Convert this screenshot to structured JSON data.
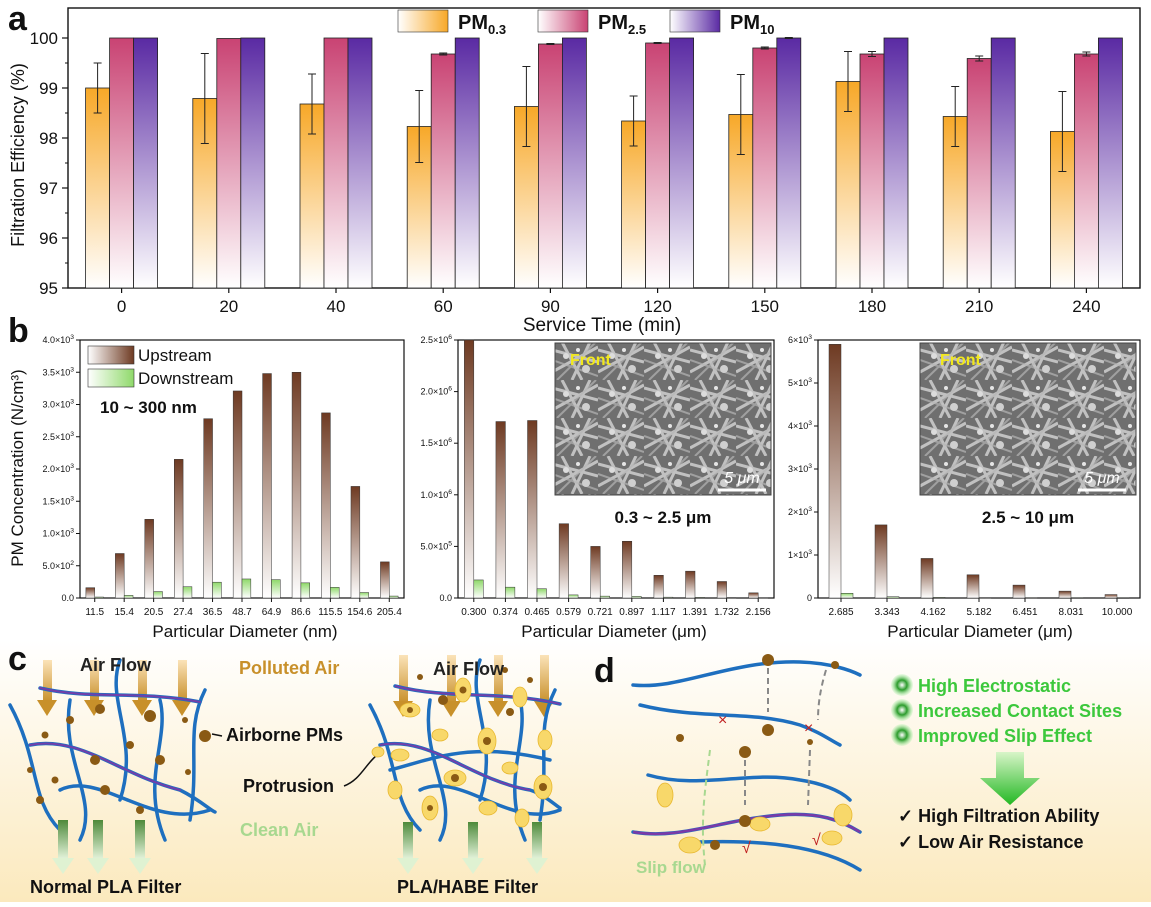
{
  "panel_labels": {
    "a": "a",
    "b": "b",
    "c": "c",
    "d": "d"
  },
  "chart_data": [
    {
      "type": "bar",
      "id": "a",
      "title": "",
      "xlabel": "Service Time (min)",
      "ylabel": "Filtration Efficiency (%)",
      "ylim": [
        95,
        100.6
      ],
      "yticks": [
        "95",
        "96",
        "97",
        "98",
        "99",
        "100"
      ],
      "categories": [
        "0",
        "20",
        "40",
        "60",
        "90",
        "120",
        "150",
        "180",
        "210",
        "240"
      ],
      "legend": [
        {
          "base": "PM",
          "sub": "0.3"
        },
        {
          "base": "PM",
          "sub": "2.5"
        },
        {
          "base": "PM",
          "sub": "10"
        }
      ],
      "colors": [
        "#f7a828",
        "#c94373",
        "#5a2aa3"
      ],
      "series": [
        {
          "name": "PM0.3",
          "values": [
            99.0,
            98.79,
            98.68,
            98.23,
            98.63,
            98.34,
            98.47,
            99.13,
            98.43,
            98.13
          ],
          "errors": [
            0.5,
            0.9,
            0.6,
            0.72,
            0.8,
            0.5,
            0.8,
            0.6,
            0.6,
            0.8
          ]
        },
        {
          "name": "PM2.5",
          "values": [
            100.0,
            99.99,
            100.0,
            99.68,
            99.88,
            99.9,
            99.8,
            99.68,
            99.59,
            99.68
          ],
          "errors": [
            0,
            0,
            0,
            0.02,
            0.01,
            0.01,
            0.02,
            0.05,
            0.05,
            0.04
          ]
        },
        {
          "name": "PM10",
          "values": [
            100.0,
            100.0,
            100.0,
            100.0,
            100.0,
            100.0,
            100.0,
            100.0,
            100.0,
            100.0
          ],
          "errors": [
            0,
            0,
            0,
            0,
            0,
            0,
            0.01,
            0,
            0,
            0
          ]
        }
      ]
    },
    {
      "type": "bar",
      "id": "b1",
      "xlabel": "Particular Diameter (nm)",
      "ylabel": "PM Concentration (N/cm³)",
      "ylim": [
        0,
        4000
      ],
      "yticks": [
        {
          "m": "0.0",
          "e": ""
        },
        {
          "m": "5.0×10",
          "e": "2"
        },
        {
          "m": "1.0×10",
          "e": "3"
        },
        {
          "m": "1.5×10",
          "e": "3"
        },
        {
          "m": "2.0×10",
          "e": "3"
        },
        {
          "m": "2.5×10",
          "e": "3"
        },
        {
          "m": "3.0×10",
          "e": "3"
        },
        {
          "m": "3.5×10",
          "e": "3"
        },
        {
          "m": "4.0×10",
          "e": "3"
        }
      ],
      "categories": [
        "11.5",
        "15.4",
        "20.5",
        "27.4",
        "36.5",
        "48.7",
        "64.9",
        "86.6",
        "115.5",
        "154.6",
        "205.4"
      ],
      "legend": [
        "Upstream",
        "Downstream"
      ],
      "range_label": "10 ~ 300 nm",
      "series": [
        {
          "name": "Upstream",
          "values": [
            160,
            690,
            1220,
            2150,
            2780,
            3210,
            3480,
            3500,
            2870,
            1730,
            560
          ]
        },
        {
          "name": "Downstream",
          "values": [
            15,
            40,
            100,
            175,
            245,
            295,
            285,
            235,
            165,
            85,
            30
          ]
        }
      ]
    },
    {
      "type": "bar",
      "id": "b2",
      "xlabel": "Particular Diameter (μm)",
      "ylabel": "",
      "ylim": [
        0,
        2500000
      ],
      "yticks": [
        {
          "m": "0.0",
          "e": ""
        },
        {
          "m": "5.0×10",
          "e": "5"
        },
        {
          "m": "1.0×10",
          "e": "6"
        },
        {
          "m": "1.5×10",
          "e": "6"
        },
        {
          "m": "2.0×10",
          "e": "6"
        },
        {
          "m": "2.5×10",
          "e": "6"
        }
      ],
      "categories": [
        "0.300",
        "0.374",
        "0.465",
        "0.579",
        "0.721",
        "0.897",
        "1.117",
        "1.391",
        "1.732",
        "2.156"
      ],
      "range_label": "0.3 ~ 2.5 μm",
      "inset": {
        "label": "Front",
        "scale": "5 μm"
      },
      "series": [
        {
          "name": "Upstream",
          "values": [
            2500000,
            1710000,
            1720000,
            720000,
            500000,
            550000,
            220000,
            260000,
            160000,
            50000
          ]
        },
        {
          "name": "Downstream",
          "values": [
            175000,
            105000,
            90000,
            30000,
            18000,
            15000,
            8000,
            6000,
            4000,
            3000
          ]
        }
      ]
    },
    {
      "type": "bar",
      "id": "b3",
      "xlabel": "Particular Diameter (μm)",
      "ylabel": "",
      "ylim": [
        0,
        6000
      ],
      "yticks": [
        {
          "m": "0",
          "e": ""
        },
        {
          "m": "1×10",
          "e": "3"
        },
        {
          "m": "2×10",
          "e": "3"
        },
        {
          "m": "3×10",
          "e": "3"
        },
        {
          "m": "4×10",
          "e": "3"
        },
        {
          "m": "5×10",
          "e": "3"
        },
        {
          "m": "6×10",
          "e": "3"
        }
      ],
      "categories": [
        "2.685",
        "3.343",
        "4.162",
        "5.182",
        "6.451",
        "8.031",
        "10.000"
      ],
      "range_label": "2.5 ~ 10 μm",
      "inset": {
        "label": "Front",
        "scale": "5 μm"
      },
      "series": [
        {
          "name": "Upstream",
          "values": [
            5900,
            1700,
            920,
            540,
            300,
            160,
            80
          ]
        },
        {
          "name": "Downstream",
          "values": [
            110,
            30,
            15,
            8,
            5,
            3,
            2
          ]
        }
      ]
    }
  ],
  "panel_c": {
    "air_flow": "Air Flow",
    "polluted_air": "Polluted Air",
    "airborne_pms": "Airborne PMs",
    "protrusion": "Protrusion",
    "clean_air": "Clean Air",
    "normal_filter": "Normal PLA Filter",
    "habe_filter": "PLA/HABE Filter"
  },
  "panel_d": {
    "features": [
      "High Electrostatic",
      "Increased Contact Sites",
      "Improved Slip Effect"
    ],
    "results": [
      "✓ High Filtration Ability",
      "✓ Low Air Resistance"
    ],
    "slip_flow": "Slip flow",
    "marks": {
      "cross": "×",
      "check": "√"
    }
  },
  "colors": {
    "feature_green": "#3cc83c",
    "clean_air": "#a8d890",
    "polluted_air": "#c8902a",
    "fiber": "#1e6fbf",
    "fiber_core": "#7a3aa8",
    "particle": "#8a5a14"
  }
}
